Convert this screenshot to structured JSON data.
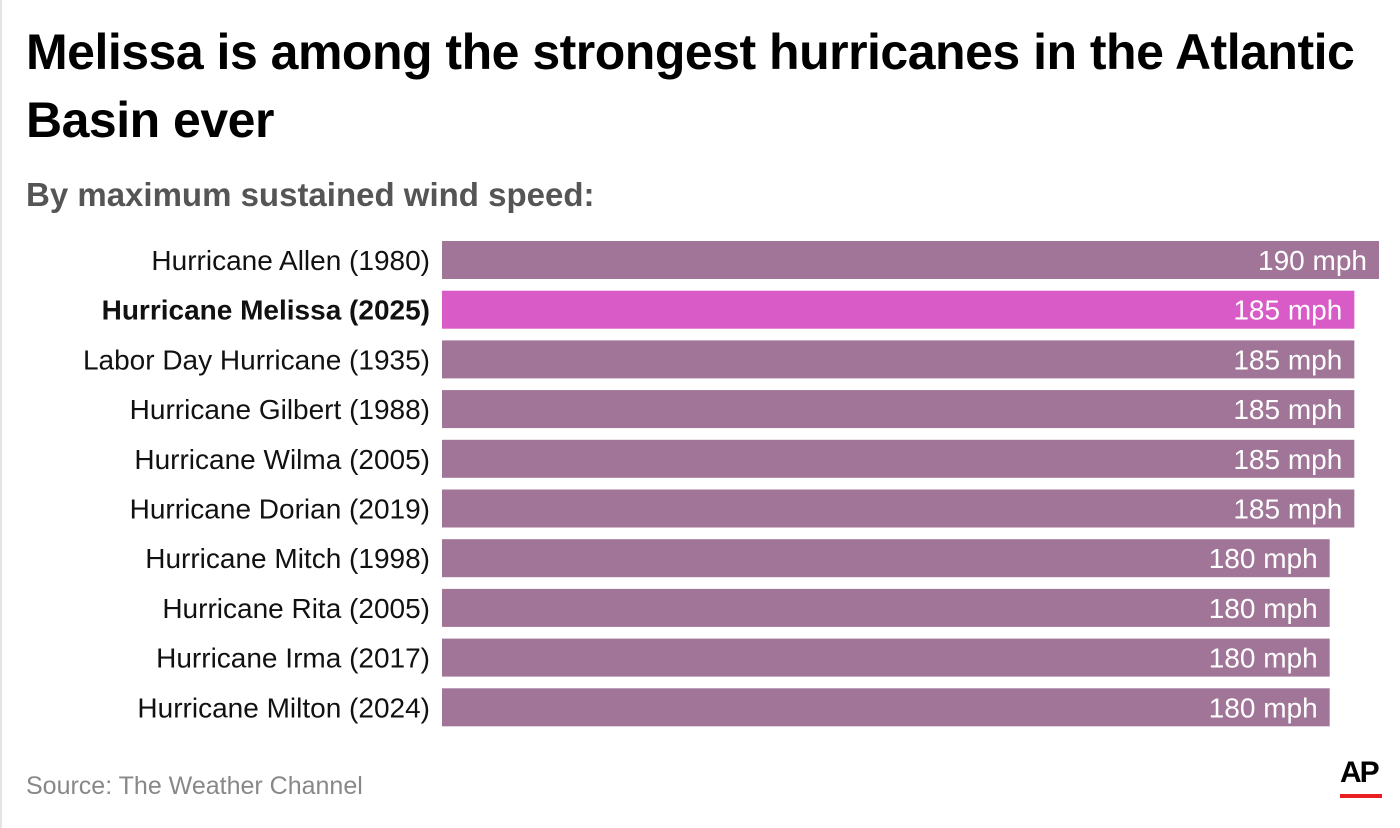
{
  "chart_data": {
    "type": "bar",
    "orientation": "horizontal",
    "title": "Melissa is among the strongest hurricanes in the Atlantic Basin ever",
    "subtitle": "By maximum sustained wind speed:",
    "categories": [
      "Hurricane Allen (1980)",
      "Hurricane Melissa (2025)",
      "Labor Day Hurricane (1935)",
      "Hurricane Gilbert (1988)",
      "Hurricane Wilma (2005)",
      "Hurricane Dorian (2019)",
      "Hurricane Mitch (1998)",
      "Hurricane Rita (2005)",
      "Hurricane Irma (2017)",
      "Hurricane Milton (2024)"
    ],
    "values": [
      190,
      185,
      185,
      185,
      185,
      185,
      180,
      180,
      180,
      180
    ],
    "value_labels": [
      "190 mph",
      "185 mph",
      "185 mph",
      "185 mph",
      "185 mph",
      "185 mph",
      "180 mph",
      "180 mph",
      "180 mph",
      "180 mph"
    ],
    "unit": "mph",
    "highlight_index": 1,
    "xlim": [
      0,
      190
    ],
    "grid": false,
    "colors": {
      "default": "#a07598",
      "highlight": "#d95bc8",
      "value_text": "#ffffff",
      "label_text": "#111111"
    }
  },
  "source": "Source: The Weather Channel",
  "logo": {
    "text": "AP",
    "accent": "#e8201f"
  }
}
